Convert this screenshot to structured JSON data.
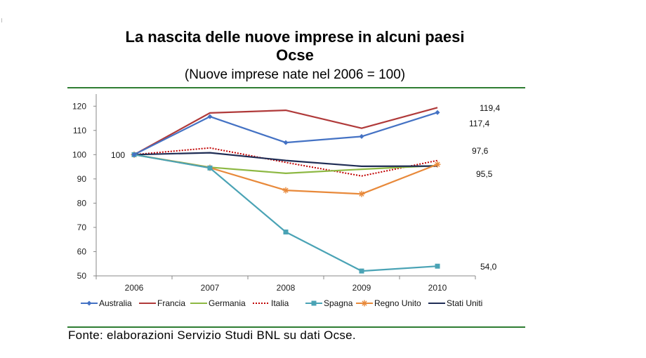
{
  "chart_data": {
    "type": "line",
    "title": "La nascita delle nuove imprese in alcuni paesi Ocse",
    "title_lines": [
      "La nascita delle nuove imprese in alcuni paesi",
      "Ocse"
    ],
    "subtitle": "(Nuove imprese nate nel 2006 = 100)",
    "source": "Fonte: elaborazioni Servizio Studi BNL su dati Ocse.",
    "xlabel": "",
    "ylabel": "",
    "categories": [
      "2006",
      "2007",
      "2008",
      "2009",
      "2010"
    ],
    "ylim": [
      50,
      125
    ],
    "yticks": [
      50,
      60,
      70,
      80,
      90,
      100,
      110,
      120
    ],
    "grid": false,
    "legend_position": "bottom",
    "series": [
      {
        "name": "Australia",
        "color": "#4472c4",
        "marker": "diamond",
        "dash": "solid",
        "values": [
          100,
          115.7,
          105,
          107.5,
          117.4
        ]
      },
      {
        "name": "Francia",
        "color": "#b03a3a",
        "marker": "none",
        "dash": "solid",
        "values": [
          100,
          117.2,
          118.3,
          110.9,
          119.4
        ]
      },
      {
        "name": "Germania",
        "color": "#8db843",
        "marker": "none",
        "dash": "solid",
        "values": [
          100,
          94.8,
          92.3,
          94,
          95.5
        ]
      },
      {
        "name": "Italia",
        "color": "#c00000",
        "marker": "none",
        "dash": "dotted",
        "values": [
          100,
          102.8,
          96.8,
          91.2,
          97.6
        ]
      },
      {
        "name": "Spagna",
        "color": "#4aa3b5",
        "marker": "square",
        "dash": "solid",
        "values": [
          100,
          94.5,
          68.1,
          52,
          54
        ]
      },
      {
        "name": "Regno Unito",
        "color": "#e8893a",
        "marker": "star",
        "dash": "solid",
        "values": [
          100,
          94.6,
          85.3,
          83.8,
          96
        ]
      },
      {
        "name": "Stati Uniti",
        "color": "#1f2d55",
        "marker": "none",
        "dash": "solid",
        "values": [
          100,
          100.8,
          97.6,
          95.2,
          95.3
        ]
      }
    ],
    "annotations": [
      "100",
      "119,4",
      "117,4",
      "97,6",
      "95,5",
      "54,0"
    ]
  }
}
